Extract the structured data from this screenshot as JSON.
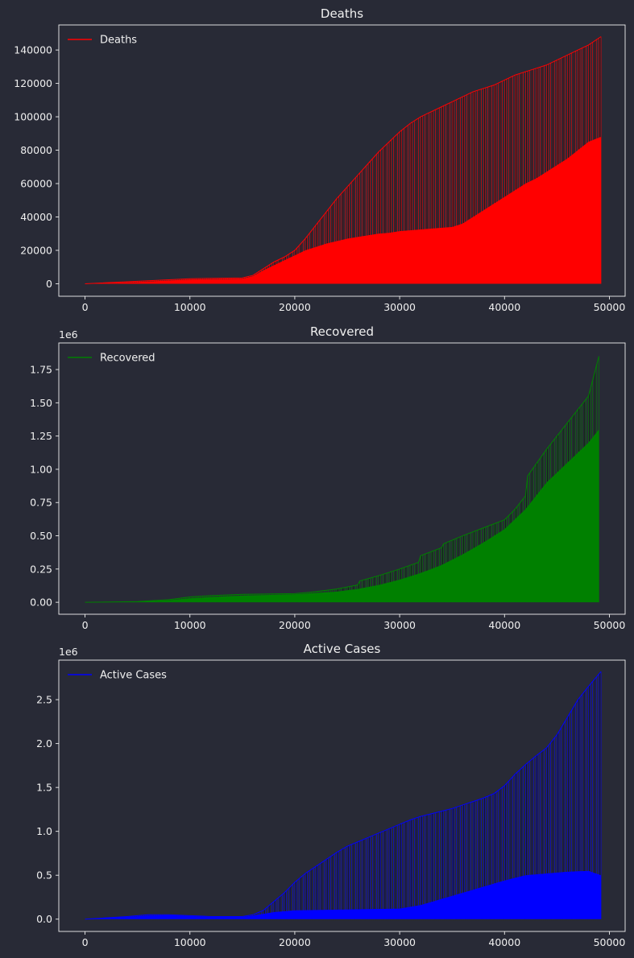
{
  "background": "#282a36",
  "chart_data": [
    {
      "type": "line",
      "title": "Deaths",
      "color": "#ff0000",
      "legend": {
        "label": "Deaths",
        "position": "top-left"
      },
      "xlim": [
        -2500,
        51500
      ],
      "ylim": [
        -7500,
        155000
      ],
      "xticks": [
        0,
        10000,
        20000,
        30000,
        40000,
        50000
      ],
      "xtick_labels": [
        "0",
        "10000",
        "20000",
        "30000",
        "40000",
        "50000"
      ],
      "yticks": [
        0,
        20000,
        40000,
        60000,
        80000,
        100000,
        120000,
        140000
      ],
      "ytick_labels": [
        "0",
        "20000",
        "40000",
        "60000",
        "80000",
        "100000",
        "120000",
        "140000"
      ],
      "offset_text": "",
      "upper_envelope": {
        "x": [
          0,
          5000,
          10000,
          15000,
          16000,
          17000,
          18000,
          19000,
          20000,
          21000,
          22000,
          23000,
          24000,
          25000,
          26000,
          27000,
          28000,
          29000,
          30000,
          31000,
          32000,
          33000,
          34000,
          35000,
          36000,
          37000,
          38000,
          39000,
          40000,
          41000,
          42000,
          43000,
          44000,
          45000,
          46000,
          47000,
          48000,
          49200
        ],
        "y": [
          0,
          1500,
          3000,
          3500,
          5000,
          9000,
          13000,
          16000,
          20000,
          27000,
          35000,
          43000,
          51000,
          58000,
          65000,
          72000,
          79000,
          85000,
          91000,
          96000,
          100000,
          103000,
          106000,
          109000,
          112000,
          115000,
          117000,
          119000,
          122000,
          125000,
          127000,
          129000,
          131000,
          134000,
          137000,
          140000,
          143000,
          148000
        ]
      },
      "lower_envelope": {
        "x": [
          0,
          5000,
          10000,
          15000,
          16000,
          17000,
          18000,
          19000,
          20000,
          21000,
          22000,
          23000,
          24000,
          25000,
          26000,
          27000,
          28000,
          29000,
          30000,
          31000,
          32000,
          33000,
          34000,
          35000,
          36000,
          37000,
          38000,
          39000,
          40000,
          41000,
          42000,
          43000,
          44000,
          45000,
          46000,
          47000,
          48000,
          49200
        ],
        "y": [
          0,
          1000,
          2500,
          3000,
          4500,
          8000,
          11000,
          14000,
          17000,
          20000,
          22000,
          24000,
          25500,
          27000,
          28000,
          29000,
          30000,
          30500,
          31500,
          32000,
          32500,
          33000,
          33500,
          34000,
          36000,
          40000,
          44000,
          48000,
          52000,
          56000,
          60000,
          63000,
          67000,
          71000,
          75000,
          80000,
          85000,
          88000
        ]
      }
    },
    {
      "type": "line",
      "title": "Recovered",
      "color": "#008000",
      "legend": {
        "label": "Recovered",
        "position": "top-left"
      },
      "xlim": [
        -2500,
        51500
      ],
      "ylim": [
        -90000,
        1950000
      ],
      "xticks": [
        0,
        10000,
        20000,
        30000,
        40000,
        50000
      ],
      "xtick_labels": [
        "0",
        "10000",
        "20000",
        "30000",
        "40000",
        "50000"
      ],
      "yticks": [
        0,
        250000,
        500000,
        750000,
        1000000,
        1250000,
        1500000,
        1750000
      ],
      "ytick_labels": [
        "0.00",
        "0.25",
        "0.50",
        "0.75",
        "1.00",
        "1.25",
        "1.50",
        "1.75"
      ],
      "offset_text": "1e6",
      "upper_envelope": {
        "x": [
          0,
          5000,
          8000,
          10000,
          12000,
          15000,
          20000,
          22000,
          24000,
          26000,
          26200,
          28000,
          30000,
          31800,
          32000,
          34000,
          34200,
          36000,
          38000,
          40000,
          41000,
          42000,
          42200,
          44000,
          46000,
          48000,
          48500,
          49000
        ],
        "y": [
          0,
          5000,
          20000,
          40000,
          50000,
          60000,
          65000,
          80000,
          100000,
          130000,
          160000,
          200000,
          250000,
          300000,
          350000,
          410000,
          440000,
          500000,
          560000,
          620000,
          700000,
          800000,
          950000,
          1150000,
          1350000,
          1550000,
          1700000,
          1850000
        ]
      },
      "lower_envelope": {
        "x": [
          0,
          5000,
          8000,
          10000,
          12000,
          15000,
          20000,
          22000,
          24000,
          26000,
          28000,
          30000,
          32000,
          34000,
          36000,
          38000,
          40000,
          42000,
          44000,
          46000,
          48000,
          49200
        ],
        "y": [
          0,
          5000,
          15000,
          30000,
          40000,
          50000,
          60000,
          70000,
          80000,
          100000,
          130000,
          170000,
          220000,
          280000,
          360000,
          450000,
          550000,
          700000,
          900000,
          1050000,
          1200000,
          1320000
        ]
      }
    },
    {
      "type": "line",
      "title": "Active Cases",
      "color": "#0000ff",
      "legend": {
        "label": "Active Cases",
        "position": "top-left"
      },
      "xlim": [
        -2500,
        51500
      ],
      "ylim": [
        -140000,
        2950000
      ],
      "xticks": [
        0,
        10000,
        20000,
        30000,
        40000,
        50000
      ],
      "xtick_labels": [
        "0",
        "10000",
        "20000",
        "30000",
        "40000",
        "50000"
      ],
      "yticks": [
        0,
        500000,
        1000000,
        1500000,
        2000000,
        2500000
      ],
      "ytick_labels": [
        "0.0",
        "0.5",
        "1.0",
        "1.5",
        "2.0",
        "2.5"
      ],
      "offset_text": "1e6",
      "upper_envelope": {
        "x": [
          0,
          4000,
          6000,
          8000,
          10000,
          12000,
          15000,
          16000,
          17000,
          18000,
          19000,
          20000,
          21000,
          22000,
          23000,
          24000,
          25000,
          26000,
          27000,
          28000,
          29000,
          30000,
          31000,
          32000,
          33000,
          34000,
          35000,
          36000,
          37000,
          38000,
          39000,
          40000,
          41000,
          42000,
          43000,
          44000,
          45000,
          46000,
          47000,
          48000,
          49200
        ],
        "y": [
          0,
          30000,
          50000,
          50000,
          40000,
          30000,
          30000,
          50000,
          100000,
          200000,
          300000,
          420000,
          520000,
          600000,
          680000,
          760000,
          830000,
          880000,
          930000,
          980000,
          1030000,
          1080000,
          1130000,
          1170000,
          1200000,
          1230000,
          1260000,
          1300000,
          1340000,
          1380000,
          1430000,
          1520000,
          1650000,
          1760000,
          1860000,
          1950000,
          2100000,
          2300000,
          2500000,
          2650000,
          2820000
        ]
      },
      "lower_envelope": {
        "x": [
          0,
          4000,
          6000,
          8000,
          10000,
          12000,
          15000,
          16000,
          17000,
          18000,
          20000,
          25000,
          30000,
          32000,
          34000,
          36000,
          38000,
          40000,
          42000,
          44000,
          46000,
          48000,
          49200
        ],
        "y": [
          0,
          25000,
          40000,
          45000,
          35000,
          25000,
          25000,
          40000,
          60000,
          80000,
          100000,
          110000,
          120000,
          160000,
          230000,
          300000,
          370000,
          440000,
          500000,
          520000,
          540000,
          550000,
          500000
        ]
      }
    }
  ]
}
